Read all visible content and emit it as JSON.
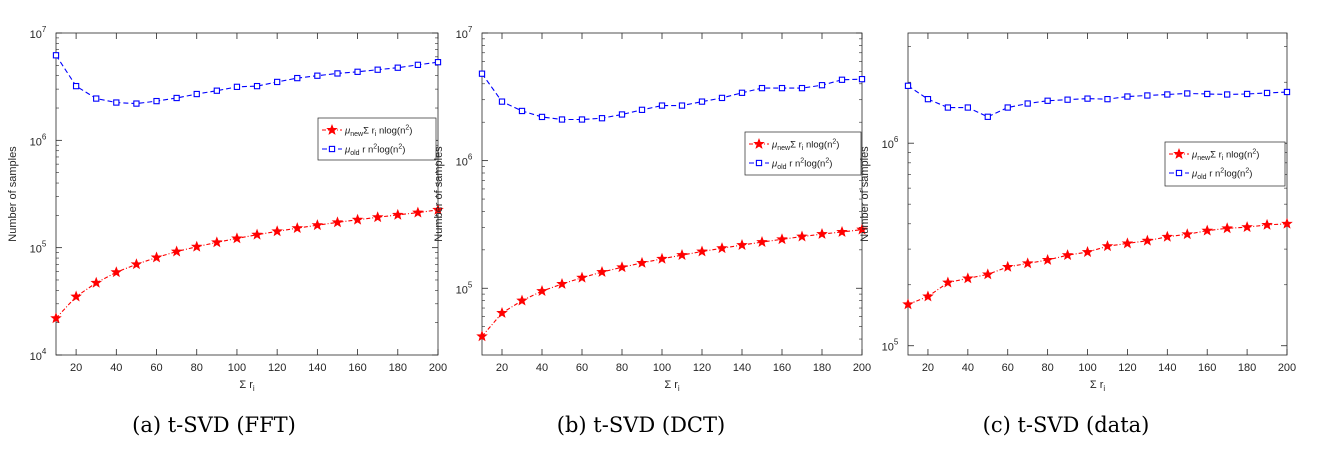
{
  "colors": {
    "new": "#ff0000",
    "old": "#0000ff",
    "axis": "#262626"
  },
  "chart_data": [
    {
      "type": "line",
      "caption": "(a) t-SVD (FFT)",
      "xlabel": "Σ r",
      "xlabel_sub": "i",
      "ylabel": "Number of samples",
      "yscale": "log",
      "xlim": [
        10,
        200
      ],
      "ylim": [
        10000,
        10000000
      ],
      "xticks": [
        20,
        40,
        60,
        80,
        100,
        120,
        140,
        160,
        180,
        200
      ],
      "xtick_labels": [
        "20",
        "40",
        "60",
        "80",
        "100",
        "120",
        "140",
        "160",
        "180",
        "200"
      ],
      "yticks": [
        10000,
        100000,
        1000000,
        10000000
      ],
      "ytick_labels": [
        {
          "b": "10",
          "e": "4"
        },
        {
          "b": "10",
          "e": "5"
        },
        {
          "b": "10",
          "e": "6"
        },
        {
          "b": "10",
          "e": "7"
        }
      ],
      "legend_position": "right",
      "x": [
        10,
        20,
        30,
        40,
        50,
        60,
        70,
        80,
        90,
        100,
        110,
        120,
        130,
        140,
        150,
        160,
        170,
        180,
        190,
        200
      ],
      "series": [
        {
          "name": "new",
          "marker": "star",
          "legend": {
            "mu": "μ",
            "sub": "new",
            "mid": "Σ r",
            "sub2": "i",
            "tail": " nlog(n",
            "sup": "2",
            "end": ")"
          },
          "values": [
            22000,
            35000,
            47000,
            59000,
            70000,
            81000,
            92000,
            102000,
            112000,
            122000,
            132000,
            142000,
            152000,
            162000,
            172000,
            182000,
            192000,
            202000,
            212000,
            225000
          ]
        },
        {
          "name": "old",
          "marker": "square",
          "legend": {
            "mu": "μ",
            "sub": "old",
            "mid": " r n",
            "sup1": "2",
            "tail": "log(n",
            "sup": "2",
            "end": ")"
          },
          "values": [
            6200000,
            3200000,
            2450000,
            2250000,
            2200000,
            2320000,
            2480000,
            2700000,
            2900000,
            3150000,
            3200000,
            3500000,
            3800000,
            4000000,
            4200000,
            4350000,
            4550000,
            4750000,
            5050000,
            5350000
          ]
        }
      ]
    },
    {
      "type": "line",
      "caption": "(b) t-SVD (DCT)",
      "xlabel": "Σ r",
      "xlabel_sub": "i",
      "ylabel": "Number of samples",
      "yscale": "log",
      "xlim": [
        10,
        200
      ],
      "ylim": [
        30000,
        10000000
      ],
      "xticks": [
        20,
        40,
        60,
        80,
        100,
        120,
        140,
        160,
        180,
        200
      ],
      "xtick_labels": [
        "20",
        "40",
        "60",
        "80",
        "100",
        "120",
        "140",
        "160",
        "180",
        "200"
      ],
      "yticks": [
        100000,
        1000000,
        10000000
      ],
      "ytick_labels": [
        {
          "b": "10",
          "e": "5"
        },
        {
          "b": "10",
          "e": "6"
        },
        {
          "b": "10",
          "e": "7"
        }
      ],
      "legend_position": "right",
      "x": [
        10,
        20,
        30,
        40,
        50,
        60,
        70,
        80,
        90,
        100,
        110,
        120,
        130,
        140,
        150,
        160,
        170,
        180,
        190,
        200
      ],
      "series": [
        {
          "name": "new",
          "marker": "star",
          "legend": {
            "mu": "μ",
            "sub": "new",
            "mid": "Σ r",
            "sub2": "i",
            "tail": " nlog(n",
            "sup": "2",
            "end": ")"
          },
          "values": [
            42000,
            64000,
            80000,
            95000,
            108000,
            121000,
            134000,
            146000,
            158000,
            170000,
            182000,
            194000,
            206000,
            218000,
            230000,
            242000,
            254000,
            266000,
            276000,
            288000
          ]
        },
        {
          "name": "old",
          "marker": "square",
          "legend": {
            "mu": "μ",
            "sub": "old",
            "mid": " r n",
            "sup1": "2",
            "tail": "log(n",
            "sup": "2",
            "end": ")"
          },
          "values": [
            4800000,
            2900000,
            2450000,
            2200000,
            2100000,
            2100000,
            2150000,
            2300000,
            2500000,
            2700000,
            2700000,
            2900000,
            3100000,
            3400000,
            3700000,
            3700000,
            3700000,
            3900000,
            4300000,
            4350000
          ]
        }
      ]
    },
    {
      "type": "line",
      "caption": "(c) t-SVD (data)",
      "xlabel": "Σ r",
      "xlabel_sub": "i",
      "ylabel": "Number of samples",
      "yscale": "log",
      "xlim": [
        10,
        200
      ],
      "ylim": [
        90000,
        3500000
      ],
      "xticks": [
        20,
        40,
        60,
        80,
        100,
        120,
        140,
        160,
        180,
        200
      ],
      "xtick_labels": [
        "20",
        "40",
        "60",
        "80",
        "100",
        "120",
        "140",
        "160",
        "180",
        "200"
      ],
      "yticks": [
        100000,
        1000000
      ],
      "ytick_labels": [
        {
          "b": "10",
          "e": "5"
        },
        {
          "b": "10",
          "e": "6"
        }
      ],
      "legend_position": "right",
      "x": [
        10,
        20,
        30,
        40,
        50,
        60,
        70,
        80,
        90,
        100,
        110,
        120,
        130,
        140,
        150,
        160,
        170,
        180,
        190,
        200
      ],
      "series": [
        {
          "name": "new",
          "marker": "star",
          "legend": {
            "mu": "μ",
            "sub": "new",
            "mid": "Σ r",
            "sub2": "i",
            "tail": " nlog(n",
            "sup": "2",
            "end": ")"
          },
          "values": [
            160000,
            175000,
            205000,
            215000,
            225000,
            245000,
            255000,
            265000,
            280000,
            290000,
            310000,
            320000,
            330000,
            345000,
            355000,
            370000,
            380000,
            385000,
            395000,
            400000
          ]
        },
        {
          "name": "old",
          "marker": "square",
          "legend": {
            "mu": "μ",
            "sub": "old",
            "mid": " r n",
            "sup1": "2",
            "tail": "log(n",
            "sup": "2",
            "end": ")"
          },
          "values": [
            1920000,
            1650000,
            1500000,
            1500000,
            1350000,
            1500000,
            1570000,
            1620000,
            1640000,
            1660000,
            1650000,
            1700000,
            1720000,
            1740000,
            1760000,
            1750000,
            1740000,
            1750000,
            1770000,
            1790000
          ]
        }
      ]
    }
  ]
}
